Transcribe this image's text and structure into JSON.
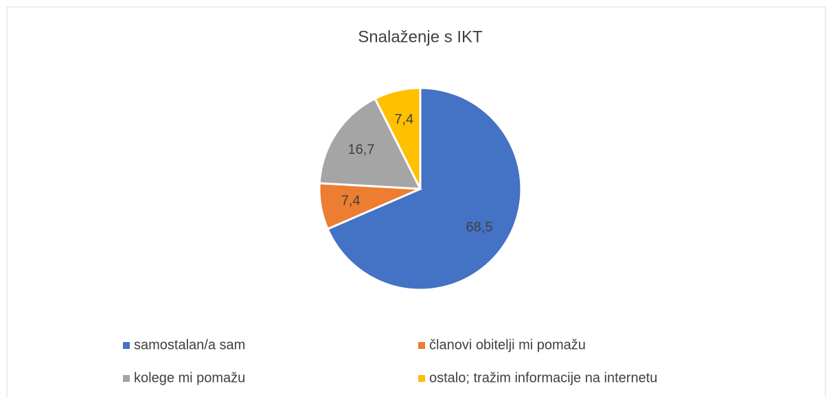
{
  "chart_data": {
    "type": "pie",
    "title": "Snalaženje s IKT",
    "categories": [
      "samostalan/a sam",
      "članovi obitelji mi pomažu",
      "kolege mi pomažu",
      "ostalo; tražim informacije na internetu"
    ],
    "values": [
      68.5,
      7.4,
      16.7,
      7.4
    ],
    "value_labels": [
      "68,5",
      "7,4",
      "16,7",
      "7,4"
    ],
    "colors": [
      "#4472c4",
      "#ed7d31",
      "#a5a5a5",
      "#ffc000"
    ],
    "legend": "bottom"
  }
}
